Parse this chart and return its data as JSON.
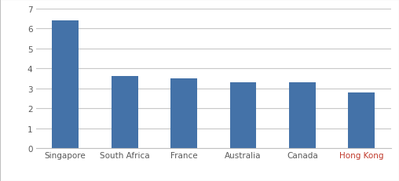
{
  "categories": [
    "Singapore",
    "South Africa",
    "France",
    "Australia",
    "Canada",
    "Hong Kong"
  ],
  "values": [
    6.4,
    3.6,
    3.5,
    3.3,
    3.3,
    2.8
  ],
  "bar_color": "#4472a8",
  "ylim": [
    0,
    7
  ],
  "yticks": [
    0,
    1,
    2,
    3,
    4,
    5,
    6,
    7
  ],
  "background_color": "#ffffff",
  "grid_color": "#c8c8c8",
  "tick_label_color_default": "#595959",
  "tick_label_color_last": "#c0392b",
  "bar_width": 0.45,
  "border_color": "#c0c0c0",
  "font_size": 7.5
}
